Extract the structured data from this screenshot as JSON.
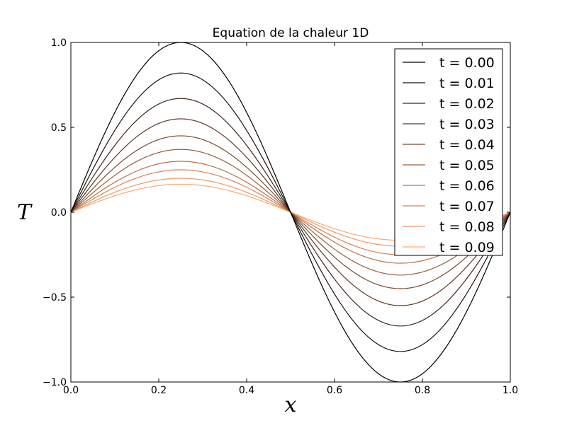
{
  "chart_data": {
    "type": "line",
    "title": "Equation de la chaleur 1D",
    "xlabel": "x",
    "ylabel": "T",
    "xlim": [
      0.0,
      1.0
    ],
    "ylim": [
      -1.0,
      1.0
    ],
    "x_ticks": [
      "0.0",
      "0.2",
      "0.4",
      "0.6",
      "0.8",
      "1.0"
    ],
    "y_ticks": [
      "−1.0",
      "−0.5",
      "0.0",
      "0.5",
      "1.0"
    ],
    "grid": false,
    "legend_position": "top-right",
    "function": "A * sin(2*pi*x)",
    "series": [
      {
        "name": "t = 0.00",
        "amplitude": 1.0,
        "color": "#000000"
      },
      {
        "name": "t = 0.01",
        "amplitude": 0.82,
        "color": "#1e120c"
      },
      {
        "name": "t = 0.02",
        "amplitude": 0.67,
        "color": "#3c2519"
      },
      {
        "name": "t = 0.03",
        "amplitude": 0.55,
        "color": "#5a3826"
      },
      {
        "name": "t = 0.04",
        "amplitude": 0.45,
        "color": "#784b32"
      },
      {
        "name": "t = 0.05",
        "amplitude": 0.37,
        "color": "#965e3f"
      },
      {
        "name": "t = 0.06",
        "amplitude": 0.3,
        "color": "#b4714c"
      },
      {
        "name": "t = 0.07",
        "amplitude": 0.25,
        "color": "#d28458"
      },
      {
        "name": "t = 0.08",
        "amplitude": 0.2,
        "color": "#f09765"
      },
      {
        "name": "t = 0.09",
        "amplitude": 0.165,
        "color": "#ffa86f"
      }
    ]
  }
}
